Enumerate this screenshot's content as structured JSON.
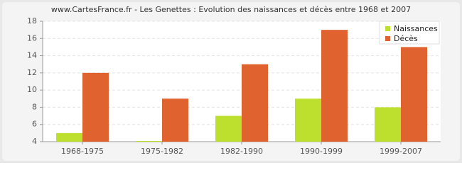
{
  "chart_data": {
    "type": "bar",
    "title": "www.CartesFrance.fr - Les Genettes : Evolution des naissances et décès entre 1968 et 2007",
    "categories": [
      "1968-1975",
      "1975-1982",
      "1982-1990",
      "1990-1999",
      "1999-2007"
    ],
    "series": [
      {
        "name": "Naissances",
        "color": "#bde02f",
        "values": [
          5,
          4,
          7,
          9,
          8
        ]
      },
      {
        "name": "Décès",
        "color": "#e0622f",
        "values": [
          12,
          9,
          13,
          17,
          15
        ]
      }
    ],
    "ylim": [
      4,
      18
    ],
    "yticks": [
      4,
      6,
      8,
      10,
      12,
      14,
      16,
      18
    ],
    "grid": true,
    "legend": "top-right"
  }
}
